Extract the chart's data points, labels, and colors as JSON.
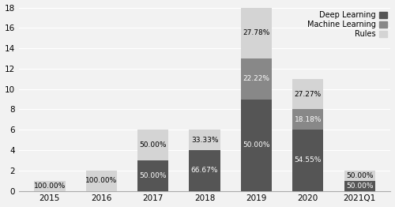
{
  "categories": [
    "2015",
    "2016",
    "2017",
    "2018",
    "2019",
    "2020",
    "2021Q1"
  ],
  "deep_learning": [
    0,
    0,
    3,
    4,
    9,
    6,
    1
  ],
  "machine_learning": [
    0,
    0,
    0,
    0,
    4,
    2,
    0
  ],
  "rules": [
    1,
    2,
    3,
    2,
    5,
    3,
    1
  ],
  "labels_deep": [
    "",
    "",
    "50.00%",
    "66.67%",
    "50.00%",
    "54.55%",
    "50.00%"
  ],
  "labels_ml": [
    "",
    "",
    "",
    "",
    "22.22%",
    "18.18%",
    ""
  ],
  "labels_rules": [
    "100.00%",
    "100.00%",
    "50.00%",
    "33.33%",
    "27.78%",
    "27.27%",
    "50.00%"
  ],
  "color_deep": "#555555",
  "color_ml": "#888888",
  "color_rules": "#d4d4d4",
  "ylim": [
    0,
    18
  ],
  "yticks": [
    0,
    2,
    4,
    6,
    8,
    10,
    12,
    14,
    16,
    18
  ],
  "legend_labels": [
    "Deep Learning",
    "Machine Learning",
    "Rules"
  ],
  "bar_width": 0.6,
  "bg_color": "#f2f2f2"
}
